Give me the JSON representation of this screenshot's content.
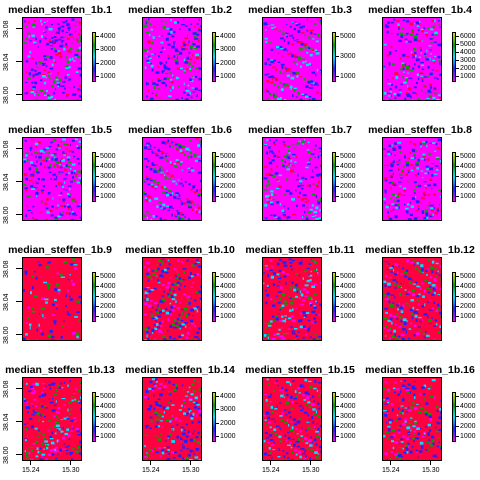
{
  "panels": [
    {
      "title": "median_steffen_1b.1",
      "legend": [
        "4000",
        "3000",
        "2000",
        "1000"
      ],
      "yaxis": [
        "38.08",
        "38.04",
        "38.00"
      ],
      "xaxis": []
    },
    {
      "title": "median_steffen_1b.2",
      "legend": [
        "4000",
        "3000",
        "2000",
        "1000"
      ],
      "yaxis": [],
      "xaxis": []
    },
    {
      "title": "median_steffen_1b.3",
      "legend": [
        "5000",
        "3000",
        "1000"
      ],
      "yaxis": [],
      "xaxis": []
    },
    {
      "title": "median_steffen_1b.4",
      "legend": [
        "6000",
        "5000",
        "4000",
        "3000",
        "2000",
        "1000"
      ],
      "yaxis": [],
      "xaxis": []
    },
    {
      "title": "median_steffen_1b.5",
      "legend": [
        "5000",
        "4000",
        "3000",
        "2000",
        "1000"
      ],
      "yaxis": [
        "38.08",
        "38.04",
        "38.00"
      ],
      "xaxis": []
    },
    {
      "title": "median_steffen_1b.6",
      "legend": [
        "5000",
        "4000",
        "3000",
        "2000",
        "1000"
      ],
      "yaxis": [],
      "xaxis": []
    },
    {
      "title": "median_steffen_1b.7",
      "legend": [
        "5000",
        "4000",
        "3000",
        "2000",
        "1000"
      ],
      "yaxis": [],
      "xaxis": []
    },
    {
      "title": "median_steffen_1b.8",
      "legend": [
        "5000",
        "4000",
        "3000",
        "2000",
        "1000"
      ],
      "yaxis": [],
      "xaxis": []
    },
    {
      "title": "median_steffen_1b.9",
      "legend": [
        "5000",
        "4000",
        "3000",
        "2000",
        "1000"
      ],
      "yaxis": [
        "38.08",
        "38.04",
        "38.00"
      ],
      "xaxis": []
    },
    {
      "title": "median_steffen_1b.10",
      "legend": [
        "5000",
        "4000",
        "3000",
        "2000",
        "1000"
      ],
      "yaxis": [],
      "xaxis": []
    },
    {
      "title": "median_steffen_1b.11",
      "legend": [
        "5000",
        "4000",
        "3000",
        "2000",
        "1000"
      ],
      "yaxis": [],
      "xaxis": []
    },
    {
      "title": "median_steffen_1b.12",
      "legend": [
        "5000",
        "4000",
        "3000",
        "2000",
        "1000"
      ],
      "yaxis": [],
      "xaxis": []
    },
    {
      "title": "median_steffen_1b.13",
      "legend": [
        "5000",
        "4000",
        "3000",
        "2000",
        "1000"
      ],
      "yaxis": [
        "38.08",
        "38.04",
        "38.00"
      ],
      "xaxis": [
        "15.24",
        "15.30"
      ]
    },
    {
      "title": "median_steffen_1b.14",
      "legend": [
        "4000",
        "3000",
        "2000",
        "1000"
      ],
      "yaxis": [],
      "xaxis": [
        "15.24",
        "15.30"
      ]
    },
    {
      "title": "median_steffen_1b.15",
      "legend": [
        "5000",
        "4000",
        "3000",
        "2000",
        "1000"
      ],
      "yaxis": [],
      "xaxis": [
        "15.24",
        "15.30"
      ]
    },
    {
      "title": "median_steffen_1b.16",
      "legend": [
        "5000",
        "4000",
        "3000",
        "2000",
        "1000"
      ],
      "yaxis": [],
      "xaxis": [
        "15.24",
        "15.30"
      ]
    }
  ],
  "colors": {
    "magenta": "#ff00ff",
    "red": "#ff0040",
    "blue": "#2020ff",
    "cyan": "#00e0ff",
    "green": "#00a000",
    "yellow": "#e0e000",
    "frame": "#000000"
  }
}
